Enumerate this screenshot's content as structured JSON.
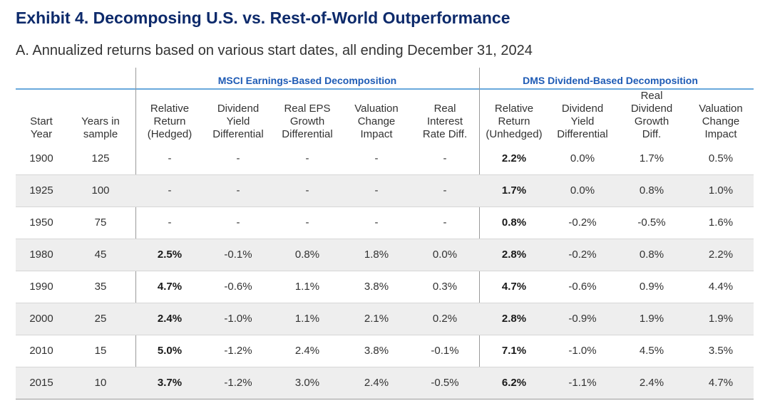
{
  "title": "Exhibit 4. Decomposing U.S. vs. Rest-of-World Outperformance",
  "subtitle": "A. Annualized returns based on various start dates, all ending December 31, 2024",
  "groups": {
    "msci": "MSCI Earnings-Based Decomposition",
    "dms": "DMS Dividend-Based Decomposition"
  },
  "headers": [
    [
      "Start",
      "Year"
    ],
    [
      "Years in",
      "sample"
    ],
    [
      "Relative",
      "Return",
      "(Hedged)"
    ],
    [
      "Dividend",
      "Yield",
      "Differential"
    ],
    [
      "Real EPS",
      "Growth",
      "Differential"
    ],
    [
      "Valuation",
      "Change",
      "Impact"
    ],
    [
      "Real",
      "Interest",
      "Rate Diff."
    ],
    [
      "Relative",
      "Return",
      "(Unhedged)"
    ],
    [
      "Dividend",
      "Yield",
      "Differential"
    ],
    [
      "Real",
      "Dividend",
      "Growth",
      "Diff."
    ],
    [
      "Valuation",
      "Change",
      "Impact"
    ]
  ],
  "rows": [
    [
      "1900",
      "125",
      "-",
      "-",
      "-",
      "-",
      "-",
      "2.2%",
      "0.0%",
      "1.7%",
      "0.5%"
    ],
    [
      "1925",
      "100",
      "-",
      "-",
      "-",
      "-",
      "-",
      "1.7%",
      "0.0%",
      "0.8%",
      "1.0%"
    ],
    [
      "1950",
      "75",
      "-",
      "-",
      "-",
      "-",
      "-",
      "0.8%",
      "-0.2%",
      "-0.5%",
      "1.6%"
    ],
    [
      "1980",
      "45",
      "2.5%",
      "-0.1%",
      "0.8%",
      "1.8%",
      "0.0%",
      "2.8%",
      "-0.2%",
      "0.8%",
      "2.2%"
    ],
    [
      "1990",
      "35",
      "4.7%",
      "-0.6%",
      "1.1%",
      "3.8%",
      "0.3%",
      "4.7%",
      "-0.6%",
      "0.9%",
      "4.4%"
    ],
    [
      "2000",
      "25",
      "2.4%",
      "-1.0%",
      "1.1%",
      "2.1%",
      "0.2%",
      "2.8%",
      "-0.9%",
      "1.9%",
      "1.9%"
    ],
    [
      "2010",
      "15",
      "5.0%",
      "-1.2%",
      "2.4%",
      "3.8%",
      "-0.1%",
      "7.1%",
      "-1.0%",
      "4.5%",
      "3.5%"
    ],
    [
      "2015",
      "10",
      "3.7%",
      "-1.2%",
      "3.0%",
      "2.4%",
      "-0.5%",
      "6.2%",
      "-1.1%",
      "2.4%",
      "4.7%"
    ]
  ]
}
